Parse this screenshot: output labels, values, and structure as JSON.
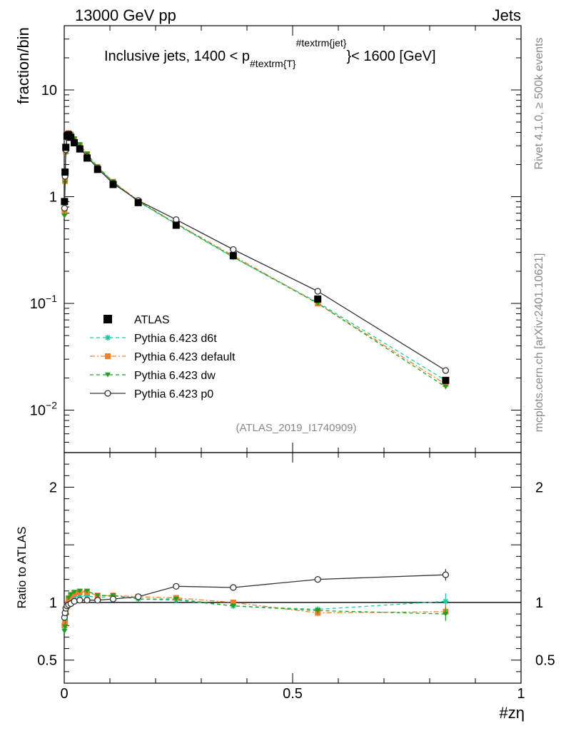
{
  "header": {
    "left": "13000 GeV pp",
    "right": "Jets"
  },
  "side_labels": {
    "rivet": "Rivet 4.1.0, ≥ 500k events",
    "mcplots": "mcplots.cern.ch [arXiv:2401.10621]"
  },
  "chart_data": [
    {
      "type": "line",
      "panel": "main",
      "title": "Inclusive jets, 1400 < p_{#textrm{T}}^{#textrm{jet}} < 1600 [GeV]",
      "title_parts": {
        "prefix": "Inclusive jets, 1400 < p",
        "subscript": "#textrm{T}",
        "superscript": "#textrm{jet}",
        "closing": "}",
        "suffix": "< 1600 [GeV]"
      },
      "ylabel": "fraction/bin",
      "yscale": "log",
      "xlim": [
        0,
        1
      ],
      "ylim": [
        0.004,
        40
      ],
      "ytick_labels": [
        {
          "value": 10,
          "label": "10"
        },
        {
          "value": 1,
          "label": "1"
        },
        {
          "value": 0.1,
          "base": "10",
          "exp": "−1"
        },
        {
          "value": 0.01,
          "base": "10",
          "exp": "−2"
        }
      ],
      "analysis_label": "(ATLAS_2019_I1740909)",
      "x": [
        0.0006,
        0.0018,
        0.0035,
        0.006,
        0.0095,
        0.0145,
        0.022,
        0.034,
        0.05,
        0.073,
        0.107,
        0.162,
        0.245,
        0.37,
        0.555,
        0.835
      ],
      "series": [
        {
          "name": "ATLAS",
          "color": "#000000",
          "marker": "square",
          "line": "none",
          "values": [
            0.9,
            1.7,
            2.9,
            3.7,
            3.8,
            3.6,
            3.2,
            2.8,
            2.3,
            1.8,
            1.3,
            0.88,
            0.54,
            0.28,
            0.11,
            0.019
          ]
        },
        {
          "name": "Pythia 6.423 d6t",
          "color": "#20c8a0",
          "marker": "star",
          "line": "dashed",
          "values": [
            0.7,
            1.45,
            2.7,
            3.65,
            3.95,
            3.75,
            3.35,
            2.95,
            2.45,
            1.85,
            1.37,
            0.9,
            0.55,
            0.27,
            0.102,
            0.019
          ]
        },
        {
          "name": "Pythia 6.423 default",
          "color": "#f08030",
          "marker": "square",
          "line": "dashdot",
          "values": [
            0.72,
            1.4,
            2.65,
            3.6,
            3.95,
            3.8,
            3.45,
            3.05,
            2.5,
            1.9,
            1.38,
            0.92,
            0.56,
            0.28,
            0.1,
            0.0175
          ]
        },
        {
          "name": "Pythia 6.423 dw",
          "color": "#20a020",
          "marker": "triangle-down",
          "line": "dashed",
          "values": [
            0.66,
            1.35,
            2.55,
            3.55,
            3.95,
            3.85,
            3.5,
            3.08,
            2.52,
            1.9,
            1.38,
            0.9,
            0.56,
            0.272,
            0.1,
            0.0165
          ]
        },
        {
          "name": "Pythia 6.423 p0",
          "color": "#333333",
          "marker": "open-circle",
          "line": "solid",
          "values": [
            0.78,
            1.55,
            2.75,
            3.6,
            3.85,
            3.65,
            3.25,
            2.85,
            2.37,
            1.84,
            1.33,
            0.92,
            0.61,
            0.32,
            0.13,
            0.0235
          ]
        }
      ]
    },
    {
      "type": "line",
      "panel": "ratio",
      "ylabel": "Ratio to ATLAS",
      "xlabel": "#zη",
      "xlim": [
        0,
        1
      ],
      "ylim": [
        0.3,
        2.3
      ],
      "reference": 1,
      "x_ticks": [
        {
          "value": 0,
          "label": "0"
        },
        {
          "value": 0.5,
          "label": "0.5"
        },
        {
          "value": 1,
          "label": "1"
        }
      ],
      "y_ticks": [
        {
          "value": 2,
          "label": "2"
        },
        {
          "value": 1,
          "label": "1"
        },
        {
          "value": 0.5,
          "label": "0.5"
        }
      ],
      "x": [
        0.0006,
        0.0018,
        0.0035,
        0.006,
        0.0095,
        0.0145,
        0.022,
        0.034,
        0.05,
        0.073,
        0.107,
        0.162,
        0.245,
        0.37,
        0.555,
        0.835
      ],
      "series": [
        {
          "name": "Pythia 6.423 d6t",
          "color": "#20c8a0",
          "marker": "star",
          "line": "dashed",
          "values": [
            0.78,
            0.85,
            0.93,
            0.99,
            1.04,
            1.04,
            1.05,
            1.05,
            1.06,
            1.04,
            1.06,
            1.03,
            1.02,
            0.97,
            0.94,
            1.01
          ],
          "errors": [
            0.02,
            0.02,
            0.01,
            0.01,
            0.01,
            0.01,
            0.01,
            0.01,
            0.01,
            0.01,
            0.01,
            0.01,
            0.01,
            0.01,
            0.02,
            0.07
          ]
        },
        {
          "name": "Pythia 6.423 default",
          "color": "#f08030",
          "marker": "square",
          "line": "dashdot",
          "values": [
            0.8,
            0.82,
            0.91,
            0.97,
            1.03,
            1.06,
            1.08,
            1.09,
            1.09,
            1.06,
            1.06,
            1.05,
            1.04,
            1.0,
            0.91,
            0.92
          ],
          "errors": [
            0.02,
            0.02,
            0.01,
            0.01,
            0.01,
            0.01,
            0.01,
            0.01,
            0.01,
            0.01,
            0.01,
            0.01,
            0.01,
            0.01,
            0.03,
            0.06
          ]
        },
        {
          "name": "Pythia 6.423 dw",
          "color": "#20a020",
          "marker": "triangle-down",
          "line": "dashed",
          "values": [
            0.75,
            0.79,
            0.88,
            0.96,
            1.04,
            1.07,
            1.09,
            1.1,
            1.1,
            1.06,
            1.06,
            1.03,
            1.03,
            0.97,
            0.93,
            0.9
          ],
          "errors": [
            0.02,
            0.02,
            0.01,
            0.01,
            0.01,
            0.01,
            0.01,
            0.01,
            0.01,
            0.01,
            0.01,
            0.01,
            0.01,
            0.01,
            0.03,
            0.06
          ]
        },
        {
          "name": "Pythia 6.423 p0",
          "color": "#333333",
          "marker": "open-circle",
          "line": "solid",
          "values": [
            0.87,
            0.91,
            0.95,
            0.97,
            0.98,
            0.99,
            1.01,
            1.02,
            1.02,
            1.02,
            1.03,
            1.05,
            1.14,
            1.13,
            1.2,
            1.24
          ],
          "errors": [
            0.02,
            0.02,
            0.01,
            0.01,
            0.01,
            0.01,
            0.01,
            0.01,
            0.01,
            0.01,
            0.01,
            0.01,
            0.01,
            0.01,
            0.02,
            0.05
          ]
        }
      ]
    }
  ]
}
